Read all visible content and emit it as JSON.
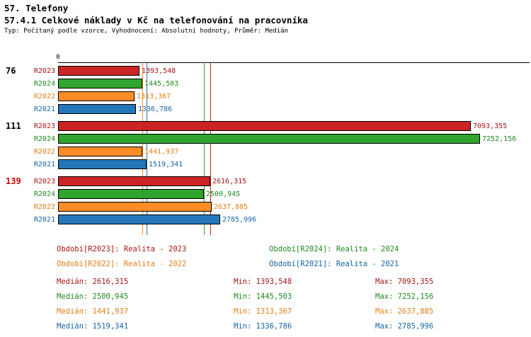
{
  "chart_data": {
    "type": "bar",
    "orientation": "horizontal",
    "title": "57. Telefony",
    "subtitle": "57.4.1 Celkové náklady v Kč na telefonování na pracovníka",
    "meta": "Typ: Počítaný podle vzorce, Vyhodnocení: Absolutní hodnoty, Průměr: Medián",
    "x_origin_label": "0",
    "xlim": [
      0,
      8100
    ],
    "grid": false,
    "series": [
      {
        "id": "R2023",
        "bar_color": "#cc2424",
        "text_color": "#aa1414",
        "legend_label": "Období[R2023]: Realita - 2023",
        "median": 2616.315,
        "stats": {
          "median": "2616,315",
          "min": "1393,548",
          "max": "7093,355"
        }
      },
      {
        "id": "R2024",
        "bar_color": "#2fa52f",
        "text_color": "#1d8a1d",
        "legend_label": "Období[R2024]: Realita - 2024",
        "median": 2500.945,
        "stats": {
          "median": "2500,945",
          "min": "1445,503",
          "max": "7252,156"
        }
      },
      {
        "id": "R2022",
        "bar_color": "#ff8c26",
        "text_color": "#e77d15",
        "legend_label": "Období[R2022]: Realita - 2022",
        "median": 1441.937,
        "stats": {
          "median": "1441,937",
          "min": "1313,367",
          "max": "2637,885"
        }
      },
      {
        "id": "R2021",
        "bar_color": "#2477bb",
        "text_color": "#1563a5",
        "legend_label": "Období[R2021]: Realita - 2021",
        "median": 1519.341,
        "stats": {
          "median": "1519,341",
          "min": "1336,786",
          "max": "2785,996"
        }
      }
    ],
    "legend_order": [
      "R2023",
      "R2024",
      "R2022",
      "R2021"
    ],
    "stats_labels": {
      "median": "Medián",
      "min": "Min",
      "max": "Max"
    },
    "groups": [
      {
        "label": "76",
        "label_color": "#000000",
        "bars": [
          {
            "series": "R2023",
            "value": 1393.548,
            "display": "1393,548"
          },
          {
            "series": "R2024",
            "value": 1445.503,
            "display": "1445,503"
          },
          {
            "series": "R2022",
            "value": 1313.367,
            "display": "1313,367"
          },
          {
            "series": "R2021",
            "value": 1336.786,
            "display": "1336,786"
          }
        ]
      },
      {
        "label": "111",
        "label_color": "#000000",
        "bars": [
          {
            "series": "R2023",
            "value": 7093.355,
            "display": "7093,355"
          },
          {
            "series": "R2024",
            "value": 7252.156,
            "display": "7252,156"
          },
          {
            "series": "R2022",
            "value": 1441.937,
            "display": "1441,937"
          },
          {
            "series": "R2021",
            "value": 1519.341,
            "display": "1519,341"
          }
        ]
      },
      {
        "label": "139",
        "label_color": "#cc0000",
        "bars": [
          {
            "series": "R2023",
            "value": 2616.315,
            "display": "2616,315"
          },
          {
            "series": "R2024",
            "value": 2500.945,
            "display": "2500,945"
          },
          {
            "series": "R2022",
            "value": 2637.885,
            "display": "2637,885"
          },
          {
            "series": "R2021",
            "value": 2785.996,
            "display": "2785,996"
          }
        ]
      }
    ],
    "median_lines": [
      {
        "series": "R2022",
        "value": 1441.937
      },
      {
        "series": "R2021",
        "value": 1519.341
      },
      {
        "series": "R2024",
        "value": 2500.945
      },
      {
        "series": "R2023",
        "value": 2616.315
      }
    ]
  }
}
